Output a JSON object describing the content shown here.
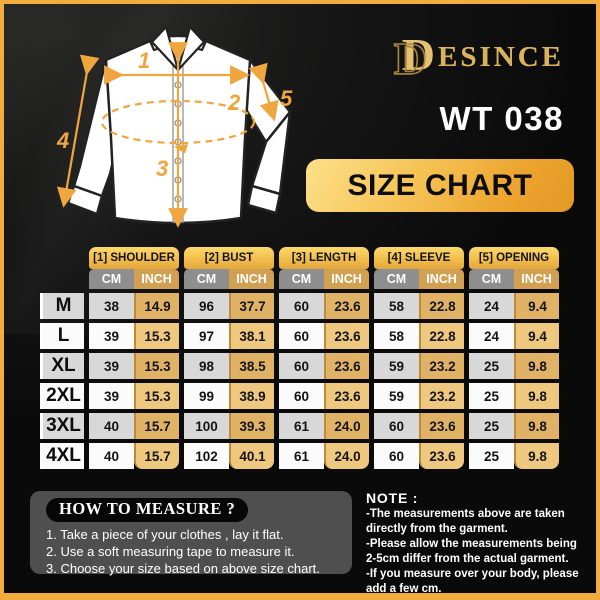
{
  "brand": {
    "logo_d": "D",
    "logo_rest": "ESINCE"
  },
  "product_code": "WT 038",
  "banner_label": "SIZE CHART",
  "diagram": {
    "labels": {
      "shoulder": "1",
      "bust": "2",
      "length": "3",
      "sleeve": "4",
      "opening": "5"
    }
  },
  "table": {
    "groups": [
      "[1] SHOULDER",
      "[2] BUST",
      "[3] LENGTH",
      "[4] SLEEVE",
      "[5] OPENING"
    ],
    "units": [
      "CM",
      "INCH"
    ],
    "rows": [
      {
        "size": "M",
        "values": [
          "38",
          "14.9",
          "96",
          "37.7",
          "60",
          "23.6",
          "58",
          "22.8",
          "24",
          "9.4"
        ]
      },
      {
        "size": "L",
        "values": [
          "39",
          "15.3",
          "97",
          "38.1",
          "60",
          "23.6",
          "58",
          "22.8",
          "24",
          "9.4"
        ]
      },
      {
        "size": "XL",
        "values": [
          "39",
          "15.3",
          "98",
          "38.5",
          "60",
          "23.6",
          "59",
          "23.2",
          "25",
          "9.8"
        ]
      },
      {
        "size": "2XL",
        "values": [
          "39",
          "15.3",
          "99",
          "38.9",
          "60",
          "23.6",
          "59",
          "23.2",
          "25",
          "9.8"
        ]
      },
      {
        "size": "3XL",
        "values": [
          "40",
          "15.7",
          "100",
          "39.3",
          "61",
          "24.0",
          "60",
          "23.6",
          "25",
          "9.8"
        ]
      },
      {
        "size": "4XL",
        "values": [
          "40",
          "15.7",
          "102",
          "40.1",
          "61",
          "24.0",
          "60",
          "23.6",
          "25",
          "9.8"
        ]
      }
    ]
  },
  "how_to_measure": {
    "title": "HOW TO MEASURE ?",
    "steps": [
      "1. Take a piece of your clothes , lay it flat.",
      "2. Use a soft measuring tape to measure it.",
      "3. Choose your size based on above size chart."
    ]
  },
  "note": {
    "title": "NOTE :",
    "lines": [
      "-The measurements above are taken directly from the garment.",
      "-Please allow the measurements being 2-5cm differ from the actual garment.",
      "-If you measure over your body, please add a few cm."
    ]
  },
  "colors": {
    "frame_gold": "#f2ae3c",
    "accent_gold": "#f0a63f",
    "tab_gold_top": "#fcd96d",
    "tab_gold_bottom": "#e2a73e",
    "cm_header_gray": "#8e8e8e",
    "inch_header_tan": "#d2a053",
    "inch_cell_light": "#eec87e",
    "inch_cell_dark": "#dfb266",
    "panel_gray": "#4f4f4f"
  }
}
